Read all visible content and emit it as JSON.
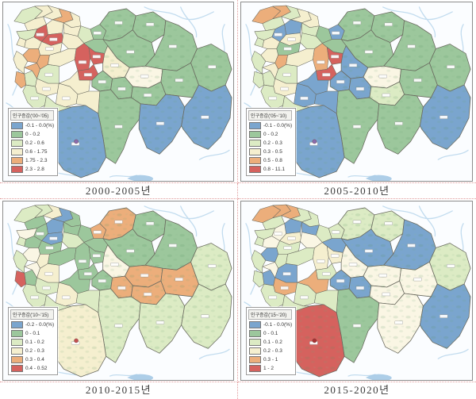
{
  "palette": {
    "blue": "#7aa5ce",
    "green": "#9cc79c",
    "lgreen": "#dcebc4",
    "yellow": "#f5efcf",
    "cream": "#faf6e4",
    "orange": "#ecae7b",
    "red": "#d5625e",
    "district_stroke": "#6b6b60",
    "river": "#c2dcef",
    "water": "#9fc6e4",
    "panel_border": "#8c8c8c",
    "panel_bg": "#fbfdff",
    "grid_dots": "#e09a9a",
    "terrain": "#57925f"
  },
  "panels": [
    {
      "caption": "2000-2005년",
      "legend": {
        "title": "인구증감('00~'05)",
        "items": [
          {
            "color_key": "blue",
            "label": "-0.1 - 0.0(%)"
          },
          {
            "color_key": "green",
            "label": "0 - 0.2"
          },
          {
            "color_key": "lgreen",
            "label": "0.2 - 0.6"
          },
          {
            "color_key": "yellow",
            "label": "0.6 - 1.75"
          },
          {
            "color_key": "orange",
            "label": "1.75 - 2.3"
          },
          {
            "color_key": "red",
            "label": "2.3 - 2.8"
          }
        ]
      },
      "dot_color": "#8a6bad",
      "region_colors": {
        "d01": "lgreen",
        "d02": "yellow",
        "d03": "yellow",
        "d04": "orange",
        "d05": "yellow",
        "d06": "yellow",
        "d07": "yellow",
        "d08": "red",
        "d09": "red",
        "d10": "yellow",
        "d11": "lgreen",
        "d12": "yellow",
        "d13": "lgreen",
        "d14": "yellow",
        "d15": "yellow",
        "d16": "yellow",
        "d17": "orange",
        "d18": "orange",
        "d19": "yellow",
        "d20": "orange",
        "d21": "lgreen",
        "d22": "yellow",
        "d23": "red",
        "m1": "green",
        "m2": "green",
        "m3": "red",
        "m4": "red",
        "sw1": "lgreen",
        "sw2": "yellow",
        "sw3": "yellow",
        "sw4": "orange",
        "sw5": "yellow",
        "swS": "lgreen",
        "swE": "yellow",
        "Sconn": "lgreen",
        "BN": "green",
        "BN2": "green",
        "BNE": "green",
        "BE": "green",
        "BFE": "green",
        "C1": "yellow",
        "C2": "cream",
        "C3": "green",
        "C4": "green",
        "C5": "green",
        "EM": "green",
        "S1": "blue",
        "S2": "green",
        "S3": "blue",
        "S4": "blue"
      }
    },
    {
      "caption": "2005-2010년",
      "legend": {
        "title": "인구증감('05~'10)",
        "items": [
          {
            "color_key": "blue",
            "label": "-0.1 - 0.0(%)"
          },
          {
            "color_key": "green",
            "label": "0 - 0.2"
          },
          {
            "color_key": "lgreen",
            "label": "0.2 - 0.3"
          },
          {
            "color_key": "yellow",
            "label": "0.3 - 0.5"
          },
          {
            "color_key": "orange",
            "label": "0.5 - 0.8"
          },
          {
            "color_key": "red",
            "label": "0.8 - 11.1"
          }
        ]
      },
      "dot_color": "#8a6bad",
      "region_colors": {
        "d01": "orange",
        "d02": "orange",
        "d03": "lgreen",
        "d04": "yellow",
        "d05": "yellow",
        "d06": "lgreen",
        "d07": "blue",
        "d08": "blue",
        "d09": "yellow",
        "d10": "lgreen",
        "d11": "green",
        "d12": "lgreen",
        "d13": "lgreen",
        "d14": "lgreen",
        "d15": "yellow",
        "d16": "green",
        "d17": "yellow",
        "d18": "orange",
        "d19": "lgreen",
        "d20": "yellow",
        "d21": "lgreen",
        "d22": "yellow",
        "d23": "orange",
        "m1": "blue",
        "m2": "green",
        "m3": "red",
        "m4": "red",
        "sw1": "lgreen",
        "sw2": "yellow",
        "sw3": "blue",
        "sw4": "lgreen",
        "sw5": "blue",
        "swS": "lgreen",
        "swE": "blue",
        "Sconn": "lgreen",
        "BN": "green",
        "BN2": "green",
        "BNE": "green",
        "BE": "green",
        "BFE": "green",
        "C1": "blue",
        "C2": "cream",
        "C3": "blue",
        "C4": "blue",
        "C5": "lgreen",
        "EM": "green",
        "S1": "blue",
        "S2": "green",
        "S3": "green",
        "S4": "blue"
      }
    },
    {
      "caption": "2010-2015년",
      "legend": {
        "title": "인구증감('10~'15)",
        "items": [
          {
            "color_key": "blue",
            "label": "-0.2 - 0.0(%)"
          },
          {
            "color_key": "green",
            "label": "0 - 0.1"
          },
          {
            "color_key": "lgreen",
            "label": "0.1 - 0.2"
          },
          {
            "color_key": "yellow",
            "label": "0.2 - 0.3"
          },
          {
            "color_key": "orange",
            "label": "0.3 - 0.4"
          },
          {
            "color_key": "red",
            "label": "0.4 - 0.52"
          }
        ]
      },
      "dot_color": "#c25050",
      "region_colors": {
        "d01": "lgreen",
        "d02": "lgreen",
        "d03": "yellow",
        "d04": "blue",
        "d05": "green",
        "d06": "green",
        "d07": "blue",
        "d08": "green",
        "d09": "blue",
        "d10": "green",
        "d11": "green",
        "d12": "lgreen",
        "d13": "cream",
        "d14": "lgreen",
        "d15": "green",
        "d16": "green",
        "d17": "cream",
        "d18": "yellow",
        "d19": "lgreen",
        "d20": "cream",
        "d21": "yellow",
        "d22": "green",
        "d23": "green",
        "m1": "orange",
        "m2": "green",
        "m3": "green",
        "m4": "green",
        "sw1": "green",
        "sw2": "lgreen",
        "sw3": "green",
        "sw4": "red",
        "sw5": "yellow",
        "swS": "lgreen",
        "swE": "lgreen",
        "Sconn": "lgreen",
        "BN": "orange",
        "BN2": "green",
        "BNE": "green",
        "BE": "green",
        "BFE": "lgreen",
        "C1": "cream",
        "C2": "orange",
        "C3": "green",
        "C4": "orange",
        "C5": "orange",
        "EM": "orange",
        "S1": "yellow",
        "S2": "lgreen",
        "S3": "lgreen",
        "S4": "lgreen"
      }
    },
    {
      "caption": "2015-2020년",
      "legend": {
        "title": "인구증감('15~'20)",
        "items": [
          {
            "color_key": "blue",
            "label": "-0.1 - 0.0(%)"
          },
          {
            "color_key": "green",
            "label": "0 - 0.1"
          },
          {
            "color_key": "lgreen",
            "label": "0.1 - 0.2"
          },
          {
            "color_key": "yellow",
            "label": "0.2 - 0.3"
          },
          {
            "color_key": "orange",
            "label": "0.3 - 1"
          },
          {
            "color_key": "red",
            "label": "1 - 2"
          }
        ]
      },
      "dot_color": "#a83232",
      "region_colors": {
        "d01": "orange",
        "d02": "orange",
        "d03": "orange",
        "d04": "lgreen",
        "d05": "lgreen",
        "d06": "lgreen",
        "d07": "blue",
        "d08": "cream",
        "d09": "yellow",
        "d10": "blue",
        "d11": "lgreen",
        "d12": "cream",
        "d13": "lgreen",
        "d14": "lgreen",
        "d15": "cream",
        "d16": "lgreen",
        "d17": "blue",
        "d18": "lgreen",
        "d19": "lgreen",
        "d20": "cream",
        "d21": "blue",
        "d22": "lgreen",
        "d23": "yellow",
        "m1": "lgreen",
        "m2": "blue",
        "m3": "yellow",
        "m4": "lgreen",
        "sw1": "blue",
        "sw2": "orange",
        "sw3": "orange",
        "sw4": "lgreen",
        "sw5": "lgreen",
        "swS": "lgreen",
        "swE": "lgreen",
        "Sconn": "lgreen",
        "BN": "lgreen",
        "BN2": "lgreen",
        "BNE": "blue",
        "BE": "blue",
        "BFE": "lgreen",
        "C1": "cream",
        "C2": "cream",
        "C3": "blue",
        "C4": "blue",
        "C5": "cream",
        "EM": "cream",
        "S1": "red",
        "S2": "green",
        "S3": "cream",
        "S4": "blue"
      }
    }
  ]
}
